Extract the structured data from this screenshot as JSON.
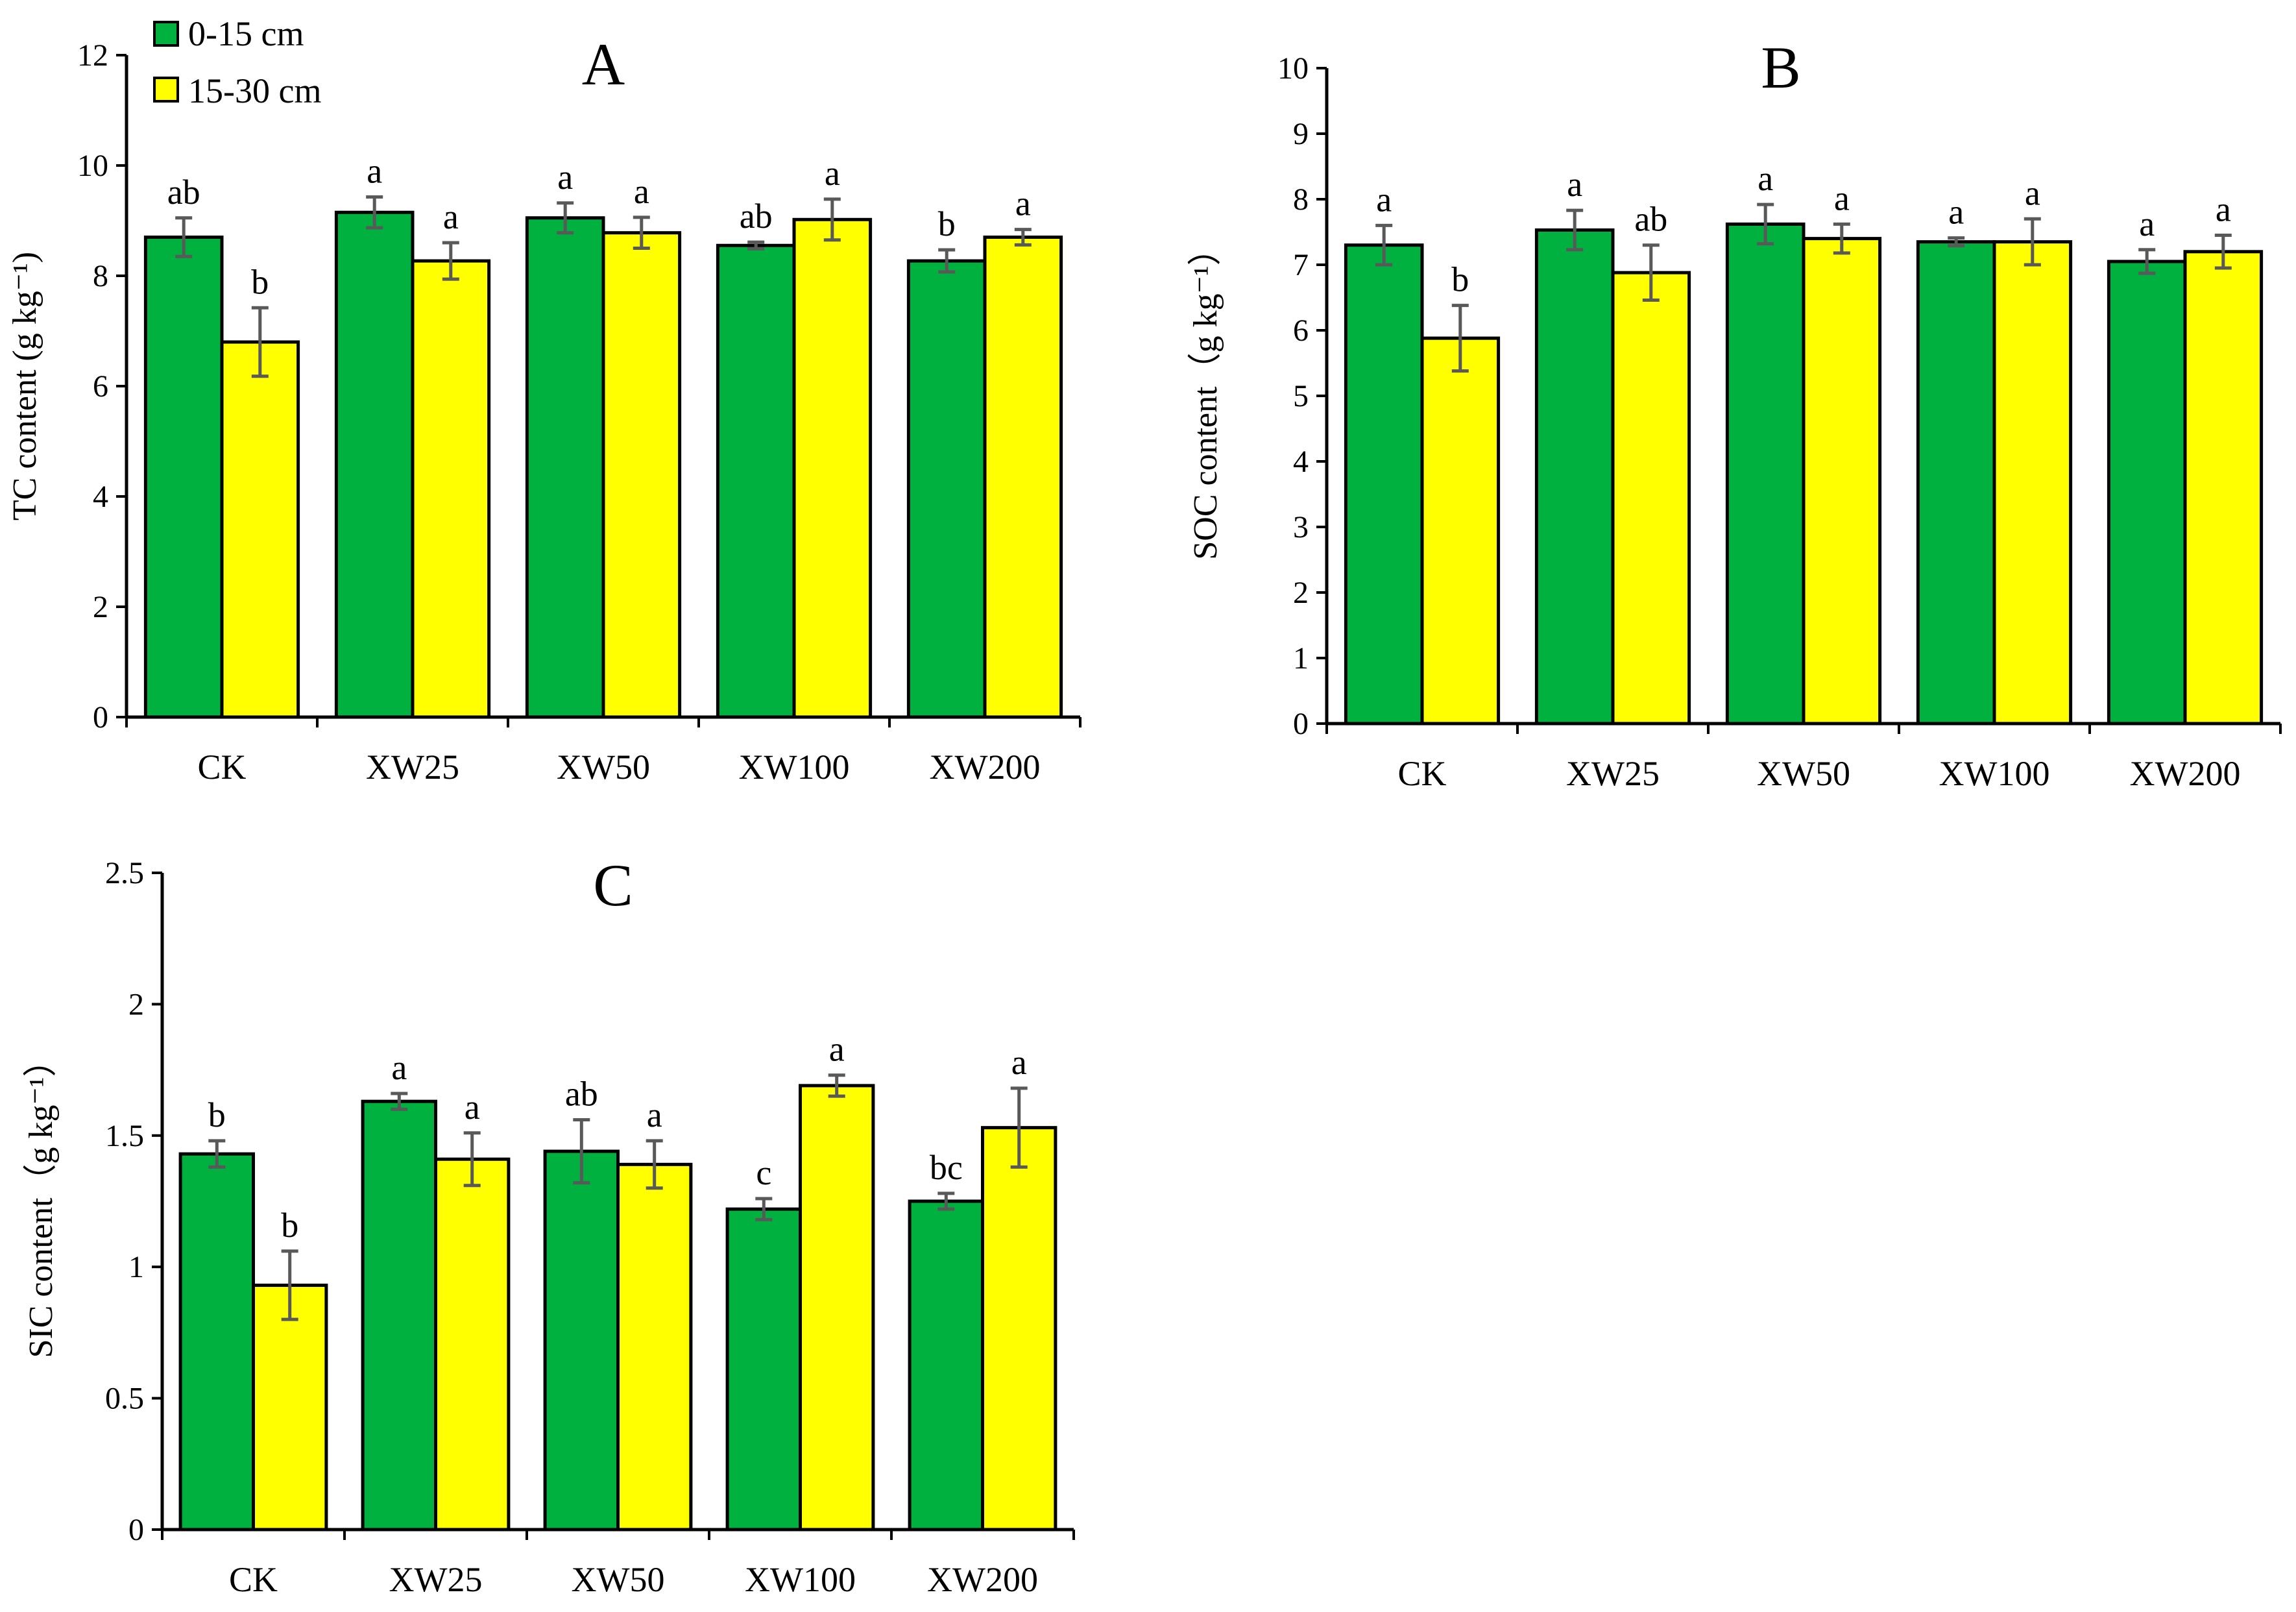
{
  "legend": {
    "position": "top-left",
    "items": [
      {
        "label": "0-15 cm",
        "color": "#00b140"
      },
      {
        "label": "15-30 cm",
        "color": "#ffff00"
      }
    ]
  },
  "colors": {
    "series_0_15": "#00b140",
    "series_15_30": "#ffff00",
    "error_bar": "#595959",
    "axis": "#000000"
  },
  "chart_data": [
    {
      "type": "bar",
      "title": "A",
      "ylabel": "TC content (g kg⁻¹)",
      "ylim": [
        0,
        12
      ],
      "yticks": [
        0,
        2,
        4,
        6,
        8,
        10,
        12
      ],
      "categories": [
        "CK",
        "XW25",
        "XW50",
        "XW100",
        "XW200"
      ],
      "series": [
        {
          "name": "0-15 cm",
          "values": [
            8.7,
            9.15,
            9.05,
            8.55,
            8.27
          ],
          "errors": [
            0.35,
            0.28,
            0.27,
            0.06,
            0.2
          ],
          "letters": [
            "ab",
            "a",
            "a",
            "ab",
            "b"
          ]
        },
        {
          "name": "15-30 cm",
          "values": [
            6.8,
            8.27,
            8.78,
            9.02,
            8.7
          ],
          "errors": [
            0.62,
            0.33,
            0.28,
            0.37,
            0.14
          ],
          "letters": [
            "b",
            "a",
            "a",
            "a",
            "a"
          ]
        }
      ],
      "grid": false
    },
    {
      "type": "bar",
      "title": "B",
      "ylabel": "SOC content（g kg⁻¹）",
      "ylim": [
        0,
        10
      ],
      "yticks": [
        0,
        1,
        2,
        3,
        4,
        5,
        6,
        7,
        8,
        9,
        10
      ],
      "categories": [
        "CK",
        "XW25",
        "XW50",
        "XW100",
        "XW200"
      ],
      "series": [
        {
          "name": "0-15 cm",
          "values": [
            7.3,
            7.53,
            7.62,
            7.35,
            7.05
          ],
          "errors": [
            0.3,
            0.3,
            0.3,
            0.06,
            0.18
          ],
          "letters": [
            "a",
            "a",
            "a",
            "a",
            "a"
          ]
        },
        {
          "name": "15-30 cm",
          "values": [
            5.88,
            6.88,
            7.4,
            7.35,
            7.2
          ],
          "errors": [
            0.5,
            0.42,
            0.22,
            0.35,
            0.25
          ],
          "letters": [
            "b",
            "ab",
            "a",
            "a",
            "a"
          ]
        }
      ],
      "grid": false
    },
    {
      "type": "bar",
      "title": "C",
      "ylabel": "SIC content（g kg⁻¹）",
      "ylim": [
        0,
        2.5
      ],
      "yticks": [
        0,
        0.5,
        1,
        1.5,
        2,
        2.5
      ],
      "categories": [
        "CK",
        "XW25",
        "XW50",
        "XW100",
        "XW200"
      ],
      "series": [
        {
          "name": "0-15 cm",
          "values": [
            1.43,
            1.63,
            1.44,
            1.22,
            1.25
          ],
          "errors": [
            0.05,
            0.03,
            0.12,
            0.04,
            0.03
          ],
          "letters": [
            "b",
            "a",
            "ab",
            "c",
            "bc"
          ]
        },
        {
          "name": "15-30 cm",
          "values": [
            0.93,
            1.41,
            1.39,
            1.69,
            1.53
          ],
          "errors": [
            0.13,
            0.1,
            0.09,
            0.04,
            0.15
          ],
          "letters": [
            "b",
            "a",
            "a",
            "a",
            "a"
          ]
        }
      ],
      "grid": false
    }
  ]
}
